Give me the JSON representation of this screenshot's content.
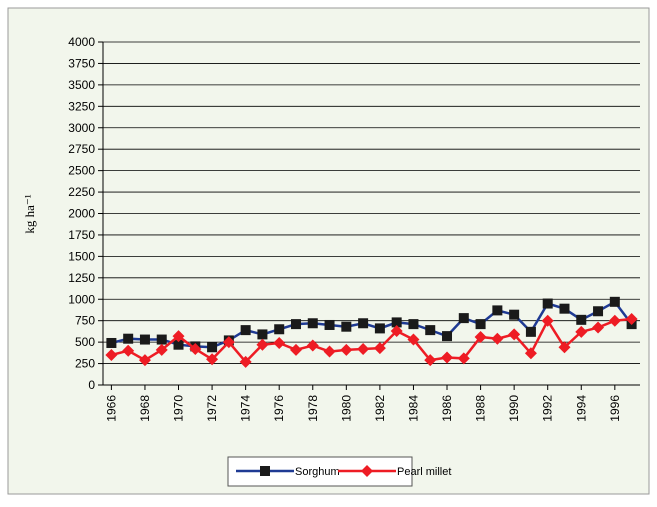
{
  "chart_data": {
    "type": "line",
    "y_label": "kg ha⁻¹",
    "x": [
      1966,
      1967,
      1968,
      1969,
      1970,
      1971,
      1972,
      1973,
      1974,
      1975,
      1976,
      1977,
      1978,
      1979,
      1980,
      1981,
      1982,
      1983,
      1984,
      1985,
      1986,
      1987,
      1988,
      1989,
      1990,
      1991,
      1992,
      1993,
      1994,
      1995,
      1996,
      1997
    ],
    "xlim": [
      1965.5,
      1997.5
    ],
    "xticks": [
      1966,
      1968,
      1970,
      1972,
      1974,
      1976,
      1978,
      1980,
      1982,
      1984,
      1986,
      1988,
      1990,
      1992,
      1994,
      1996
    ],
    "ylim": [
      0,
      4000
    ],
    "yticks": [
      0,
      250,
      500,
      750,
      1000,
      1250,
      1500,
      1750,
      2000,
      2250,
      2500,
      2750,
      3000,
      3250,
      3500,
      3750,
      4000
    ],
    "grid": true,
    "legend": "bottom",
    "series": [
      {
        "name": "Sorghum",
        "color": "#1a1a1a",
        "line_color": "#1f3a93",
        "marker": "square",
        "values": [
          490,
          540,
          530,
          530,
          470,
          450,
          440,
          520,
          640,
          590,
          650,
          710,
          720,
          700,
          680,
          720,
          660,
          730,
          710,
          640,
          570,
          780,
          710,
          870,
          820,
          620,
          950,
          890,
          760,
          860,
          970,
          710
        ]
      },
      {
        "name": "Pearl millet",
        "color": "#ee1c24",
        "line_color": "#ee1c24",
        "marker": "diamond",
        "values": [
          350,
          400,
          290,
          410,
          570,
          420,
          300,
          500,
          270,
          470,
          490,
          410,
          460,
          390,
          410,
          420,
          430,
          630,
          530,
          290,
          320,
          310,
          560,
          540,
          590,
          370,
          750,
          440,
          620,
          670,
          750,
          770
        ]
      }
    ]
  }
}
